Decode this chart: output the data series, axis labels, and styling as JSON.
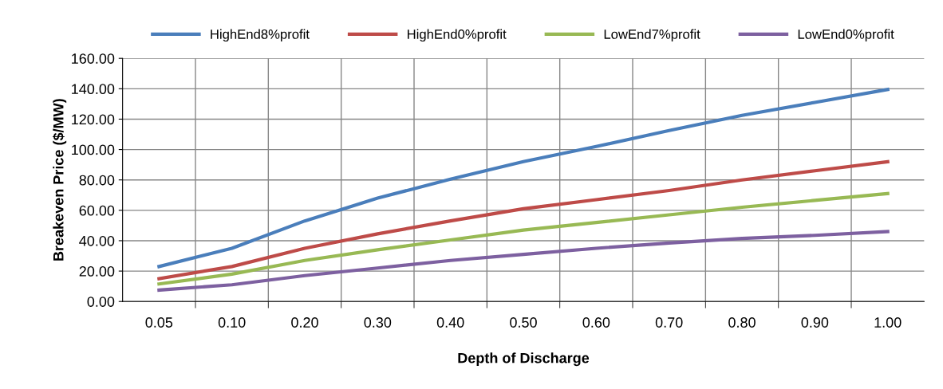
{
  "chart_data": {
    "type": "line",
    "xlabel": "Depth of Discharge",
    "ylabel": "Breakeven Price ($/MW)",
    "categories": [
      "0.05",
      "0.10",
      "0.20",
      "0.30",
      "0.40",
      "0.50",
      "0.60",
      "0.70",
      "0.80",
      "0.90",
      "1.00"
    ],
    "series": [
      {
        "name": "HighEnd8%profit",
        "color": "#4a7ebb",
        "values": [
          23,
          35,
          53,
          68,
          80.5,
          92,
          102,
          112.5,
          122.5,
          131,
          139.5
        ]
      },
      {
        "name": "HighEnd0%profit",
        "color": "#be4b48",
        "values": [
          15,
          23,
          35,
          44.5,
          53,
          61,
          67,
          73,
          80,
          86,
          92
        ]
      },
      {
        "name": "LowEnd7%profit",
        "color": "#98b954",
        "values": [
          11.5,
          18,
          27,
          34,
          40.5,
          47,
          52,
          57,
          62,
          66.5,
          71
        ]
      },
      {
        "name": "LowEnd0%profit",
        "color": "#7d60a0",
        "values": [
          7.5,
          11,
          17,
          22,
          27,
          31,
          35,
          38.5,
          41.5,
          43.5,
          46
        ]
      }
    ],
    "ylim": [
      0,
      160
    ],
    "yticks": [
      {
        "value": 0,
        "label": "0.00"
      },
      {
        "value": 20,
        "label": "20.00"
      },
      {
        "value": 40,
        "label": "40.00"
      },
      {
        "value": 60,
        "label": "60.00"
      },
      {
        "value": 80,
        "label": "80.00"
      },
      {
        "value": 100,
        "label": "100.00"
      },
      {
        "value": 120,
        "label": "120.00"
      },
      {
        "value": 140,
        "label": "140.00"
      },
      {
        "value": 160,
        "label": "160.00"
      }
    ],
    "grid": true,
    "legend": "top",
    "marker": "none",
    "line_style": "solid"
  }
}
